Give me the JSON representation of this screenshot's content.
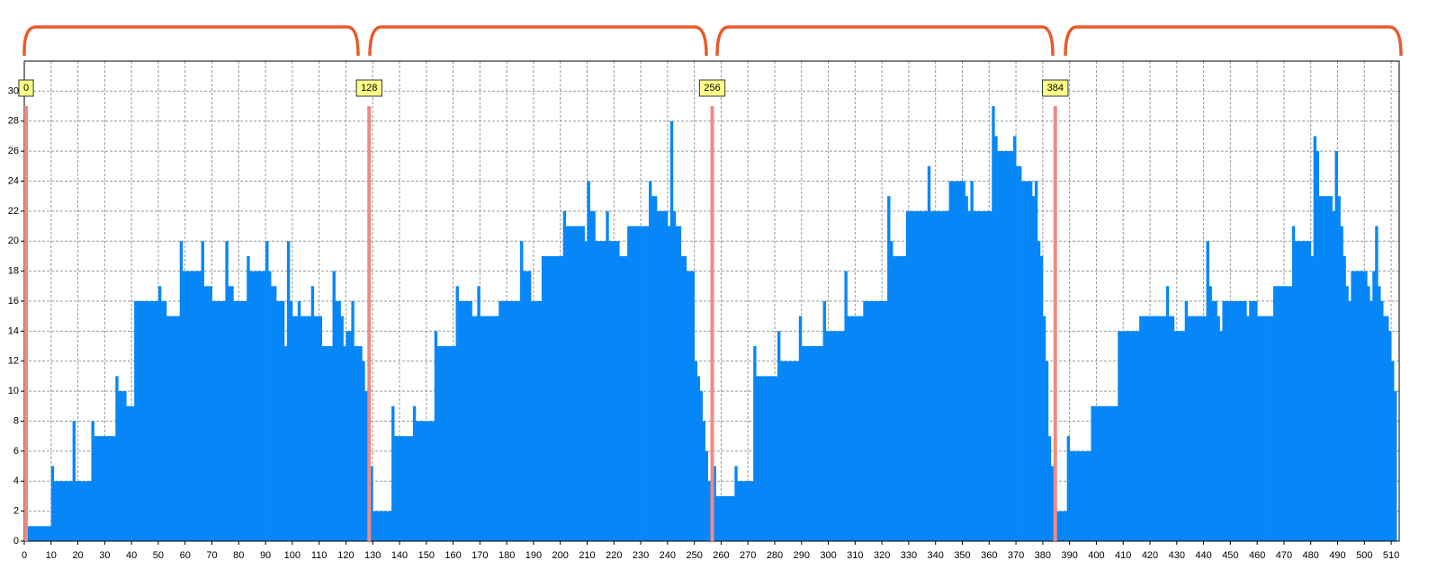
{
  "chart_data": {
    "type": "histogram",
    "bins": [
      0,
      1,
      2,
      3,
      4,
      5,
      6,
      7,
      8,
      9,
      10,
      11,
      12,
      13,
      14,
      15,
      16,
      17,
      18,
      19,
      20,
      21,
      22,
      23,
      24,
      25,
      26,
      27,
      28,
      29,
      30,
      31,
      32,
      33,
      34,
      35,
      36,
      37,
      38,
      39,
      40,
      41,
      42,
      43,
      44,
      45,
      46,
      47,
      48,
      49,
      50,
      51,
      52,
      53,
      54,
      55,
      56,
      57,
      58,
      59,
      60,
      61,
      62,
      63,
      64,
      65,
      66,
      67,
      68,
      69,
      70,
      71,
      72,
      73,
      74,
      75,
      76,
      77,
      78,
      79,
      80,
      81,
      82,
      83,
      84,
      85,
      86,
      87,
      88,
      89,
      90,
      91,
      92,
      93,
      94,
      95,
      96,
      97,
      98,
      99,
      100,
      101,
      102,
      103,
      104,
      105,
      106,
      107,
      108,
      109,
      110,
      111,
      112,
      113,
      114,
      115,
      116,
      117,
      118,
      119,
      120,
      121,
      122,
      123,
      124,
      125,
      126,
      127,
      128,
      129,
      130,
      131,
      132,
      133,
      134,
      135,
      136,
      137,
      138,
      139,
      140,
      141,
      142,
      143,
      144,
      145,
      146,
      147,
      148,
      149,
      150,
      151,
      152,
      153,
      154,
      155,
      156,
      157,
      158,
      159,
      160,
      161,
      162,
      163,
      164,
      165,
      166,
      167,
      168,
      169,
      170,
      171,
      172,
      173,
      174,
      175,
      176,
      177,
      178,
      179,
      180,
      181,
      182,
      183,
      184,
      185,
      186,
      187,
      188,
      189,
      190,
      191,
      192,
      193,
      194,
      195,
      196,
      197,
      198,
      199,
      200,
      201,
      202,
      203,
      204,
      205,
      206,
      207,
      208,
      209,
      210,
      211,
      212,
      213,
      214,
      215,
      216,
      217,
      218,
      219,
      220,
      221,
      222,
      223,
      224,
      225,
      226,
      227,
      228,
      229,
      230,
      231,
      232,
      233,
      234,
      235,
      236,
      237,
      238,
      239,
      240,
      241,
      242,
      243,
      244,
      245,
      246,
      247,
      248,
      249,
      250,
      251,
      252,
      253,
      254,
      255,
      256,
      257,
      258,
      259,
      260,
      261,
      262,
      263,
      264,
      265,
      266,
      267,
      268,
      269,
      270,
      271,
      272,
      273,
      274,
      275,
      276,
      277,
      278,
      279,
      280,
      281,
      282,
      283,
      284,
      285,
      286,
      287,
      288,
      289,
      290,
      291,
      292,
      293,
      294,
      295,
      296,
      297,
      298,
      299,
      300,
      301,
      302,
      303,
      304,
      305,
      306,
      307,
      308,
      309,
      310,
      311,
      312,
      313,
      314,
      315,
      316,
      317,
      318,
      319,
      320,
      321,
      322,
      323,
      324,
      325,
      326,
      327,
      328,
      329,
      330,
      331,
      332,
      333,
      334,
      335,
      336,
      337,
      338,
      339,
      340,
      341,
      342,
      343,
      344,
      345,
      346,
      347,
      348,
      349,
      350,
      351,
      352,
      353,
      354,
      355,
      356,
      357,
      358,
      359,
      360,
      361,
      362,
      363,
      364,
      365,
      366,
      367,
      368,
      369,
      370,
      371,
      372,
      373,
      374,
      375,
      376,
      377,
      378,
      379,
      380,
      381,
      382,
      383,
      384,
      385,
      386,
      387,
      388,
      389,
      390,
      391,
      392,
      393,
      394,
      395,
      396,
      397,
      398,
      399,
      400,
      401,
      402,
      403,
      404,
      405,
      406,
      407,
      408,
      409,
      410,
      411,
      412,
      413,
      414,
      415,
      416,
      417,
      418,
      419,
      420,
      421,
      422,
      423,
      424,
      425,
      426,
      427,
      428,
      429,
      430,
      431,
      432,
      433,
      434,
      435,
      436,
      437,
      438,
      439,
      440,
      441,
      442,
      443,
      444,
      445,
      446,
      447,
      448,
      449,
      450,
      451,
      452,
      453,
      454,
      455,
      456,
      457,
      458,
      459,
      460,
      461,
      462,
      463,
      464,
      465,
      466,
      467,
      468,
      469,
      470,
      471,
      472,
      473,
      474,
      475,
      476,
      477,
      478,
      479,
      480,
      481,
      482,
      483,
      484,
      485,
      486,
      487,
      488,
      489,
      490,
      491,
      492,
      493,
      494,
      495,
      496,
      497,
      498,
      499,
      500,
      501,
      502,
      503,
      504,
      505,
      506,
      507,
      508,
      509,
      510,
      511,
      512
    ],
    "values": [
      1,
      1,
      1,
      1,
      1,
      1,
      1,
      1,
      1,
      1,
      5,
      4,
      4,
      4,
      4,
      4,
      4,
      4,
      8,
      4,
      4,
      4,
      4,
      4,
      4,
      8,
      7,
      7,
      7,
      7,
      7,
      7,
      7,
      7,
      11,
      10,
      10,
      10,
      9,
      9,
      9,
      16,
      16,
      16,
      16,
      16,
      16,
      16,
      16,
      16,
      17,
      16,
      16,
      15,
      15,
      15,
      15,
      15,
      20,
      18,
      18,
      18,
      18,
      18,
      18,
      18,
      20,
      17,
      17,
      17,
      16,
      16,
      16,
      16,
      16,
      20,
      17,
      17,
      16,
      16,
      16,
      16,
      16,
      19,
      18,
      18,
      18,
      18,
      18,
      18,
      20,
      18,
      17,
      17,
      16,
      16,
      16,
      13,
      20,
      16,
      15,
      15,
      16,
      15,
      15,
      15,
      15,
      17,
      15,
      15,
      15,
      13,
      13,
      13,
      13,
      18,
      16,
      16,
      15,
      13,
      14,
      14,
      16,
      13,
      13,
      13,
      12,
      10,
      6,
      5,
      2,
      2,
      2,
      2,
      2,
      2,
      2,
      9,
      7,
      7,
      7,
      7,
      7,
      7,
      7,
      9,
      8,
      8,
      8,
      8,
      8,
      8,
      8,
      14,
      13,
      13,
      13,
      13,
      13,
      13,
      13,
      17,
      16,
      16,
      16,
      16,
      16,
      15,
      15,
      17,
      15,
      15,
      15,
      15,
      15,
      15,
      15,
      16,
      16,
      16,
      16,
      16,
      16,
      16,
      16,
      20,
      18,
      18,
      18,
      16,
      16,
      16,
      16,
      19,
      19,
      19,
      19,
      19,
      19,
      19,
      19,
      22,
      21,
      21,
      21,
      21,
      21,
      21,
      21,
      20,
      24,
      22,
      22,
      20,
      20,
      20,
      20,
      22,
      20,
      20,
      20,
      20,
      19,
      19,
      19,
      21,
      21,
      21,
      21,
      21,
      21,
      21,
      21,
      24,
      23,
      23,
      22,
      22,
      22,
      22,
      21,
      28,
      22,
      21,
      21,
      19,
      19,
      18,
      18,
      18,
      12,
      11,
      10,
      8,
      6,
      4,
      5,
      5,
      3,
      3,
      3,
      3,
      3,
      3,
      3,
      5,
      4,
      4,
      4,
      4,
      4,
      4,
      13,
      11,
      11,
      11,
      11,
      11,
      11,
      11,
      11,
      14,
      12,
      12,
      12,
      12,
      12,
      12,
      12,
      15,
      13,
      13,
      13,
      13,
      13,
      13,
      13,
      13,
      16,
      14,
      14,
      14,
      14,
      14,
      14,
      14,
      18,
      15,
      15,
      15,
      15,
      15,
      15,
      16,
      16,
      16,
      16,
      16,
      16,
      16,
      16,
      16,
      23,
      20,
      19,
      19,
      19,
      19,
      19,
      22,
      22,
      22,
      22,
      22,
      22,
      22,
      22,
      25,
      22,
      22,
      22,
      22,
      22,
      22,
      22,
      24,
      24,
      24,
      24,
      24,
      24,
      23,
      22,
      24,
      22,
      22,
      22,
      22,
      22,
      22,
      22,
      29,
      27,
      26,
      26,
      26,
      26,
      26,
      26,
      27,
      25,
      25,
      24,
      24,
      24,
      24,
      23,
      24,
      20,
      19,
      15,
      12,
      7,
      5,
      2,
      2,
      2,
      2,
      2,
      7,
      6,
      6,
      6,
      6,
      6,
      6,
      6,
      6,
      9,
      9,
      9,
      9,
      9,
      9,
      9,
      9,
      9,
      9,
      14,
      14,
      14,
      14,
      14,
      14,
      14,
      14,
      15,
      15,
      15,
      15,
      15,
      15,
      15,
      15,
      15,
      15,
      17,
      15,
      15,
      14,
      14,
      14,
      14,
      16,
      15,
      15,
      15,
      15,
      15,
      15,
      15,
      20,
      17,
      16,
      16,
      15,
      14,
      16,
      16,
      16,
      16,
      16,
      16,
      16,
      16,
      16,
      15,
      16,
      16,
      16,
      15,
      15,
      15,
      15,
      15,
      15,
      17,
      17,
      17,
      17,
      17,
      17,
      17,
      21,
      20,
      20,
      20,
      20,
      20,
      20,
      19,
      27,
      26,
      23,
      23,
      23,
      23,
      23,
      22,
      26,
      23,
      21,
      19,
      17,
      16,
      18,
      18,
      18,
      18,
      18,
      18,
      17,
      16,
      18,
      21,
      17,
      16,
      15,
      15,
      14,
      12,
      10
    ],
    "color": "#0787f7",
    "xlim": [
      0,
      513
    ],
    "ylim": [
      0,
      32
    ],
    "xticks": [
      0,
      10,
      20,
      30,
      40,
      50,
      60,
      70,
      80,
      90,
      100,
      110,
      120,
      130,
      140,
      150,
      160,
      170,
      180,
      190,
      200,
      210,
      220,
      230,
      240,
      250,
      260,
      270,
      280,
      290,
      300,
      310,
      320,
      330,
      340,
      350,
      360,
      370,
      380,
      390,
      400,
      410,
      420,
      430,
      440,
      450,
      460,
      470,
      480,
      490,
      500,
      510
    ],
    "yticks": [
      0,
      2,
      4,
      6,
      8,
      10,
      12,
      14,
      16,
      18,
      20,
      22,
      24,
      26,
      28,
      30
    ],
    "grid": true,
    "markers": [
      0,
      128,
      256,
      384
    ],
    "marker_color": "#f08a86"
  }
}
